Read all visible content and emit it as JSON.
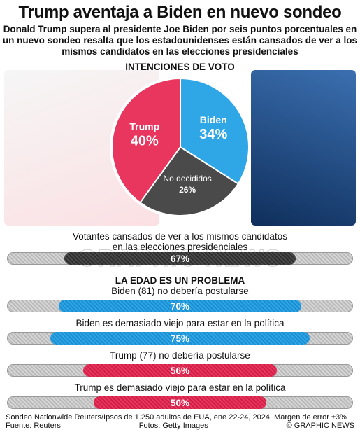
{
  "title": "Trump aventaja a Biden en nuevo sondeo",
  "subtitle": "Donald Trump supera al presidente Joe Biden por seis puntos porcentuales en un nuevo sondeo resalta que los estadounidenses están cansados de ver a los mismos candidatos en las elecciones presidenciales",
  "pie_heading": "INTENCIONES DE VOTO",
  "colors": {
    "trump": "#e8365e",
    "biden": "#2fa6e6",
    "undecided": "#4a4a4a"
  },
  "watermark": "GRAPHIC NEWS",
  "age_heading": "LA EDAD ES UN PROBLEMA",
  "chart_data": [
    {
      "type": "pie",
      "title": "INTENCIONES DE VOTO",
      "slices": [
        {
          "label": "Trump",
          "value": 40,
          "display": "40%",
          "color": "#e8365e"
        },
        {
          "label": "Biden",
          "value": 34,
          "display": "34%",
          "color": "#2fa6e6"
        },
        {
          "label": "No decididos",
          "value": 26,
          "display": "26%",
          "color": "#4a4a4a"
        }
      ]
    },
    {
      "type": "bar",
      "orientation": "horizontal",
      "xlim": [
        0,
        100
      ],
      "bars": [
        {
          "label": "Votantes cansados de ver a los mismos candidatos en las elecciones presidenciales",
          "value": 67,
          "display": "67%",
          "color": "gray"
        },
        {
          "label": "Biden (81) no debería postularse",
          "value": 70,
          "display": "70%",
          "color": "blue"
        },
        {
          "label": "Biden es demasiado viejo para estar en la política",
          "value": 75,
          "display": "75%",
          "color": "blue"
        },
        {
          "label": "Trump (77) no debería postularse",
          "value": 56,
          "display": "56%",
          "color": "red"
        },
        {
          "label": "Trump es demasiado viejo para estar en la política",
          "value": 50,
          "display": "50%",
          "color": "red"
        }
      ]
    }
  ],
  "footer": {
    "source_note": "Sondeo Nationwide Reuters/Ipsos de 1.250 adultos de EUA, ene 22-24, 2024. Margen de error ±3%",
    "source": "Fuente: Reuters",
    "photos": "Fotos: Getty Images",
    "copyright": "© GRAPHIC NEWS"
  }
}
